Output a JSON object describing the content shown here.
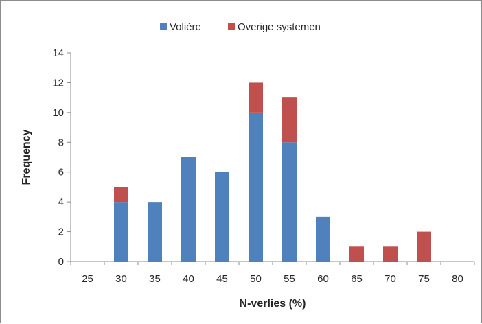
{
  "chart_data": {
    "type": "bar",
    "stacked": true,
    "title": "",
    "xlabel": "N-verlies (%)",
    "ylabel": "Frequency",
    "categories": [
      "25",
      "30",
      "35",
      "40",
      "45",
      "50",
      "55",
      "60",
      "65",
      "70",
      "75",
      "80"
    ],
    "series": [
      {
        "name": "Volière",
        "color": "#4f81bd",
        "values": [
          0,
          4,
          4,
          7,
          6,
          10,
          8,
          3,
          0,
          0,
          0,
          0
        ]
      },
      {
        "name": "Overige systemen",
        "color": "#c0504d",
        "values": [
          0,
          1,
          0,
          0,
          0,
          2,
          3,
          0,
          1,
          1,
          2,
          0
        ]
      }
    ],
    "ylim": [
      0,
      14
    ],
    "yticks": [
      0,
      2,
      4,
      6,
      8,
      10,
      12,
      14
    ],
    "grid": false,
    "legend_position": "top"
  }
}
